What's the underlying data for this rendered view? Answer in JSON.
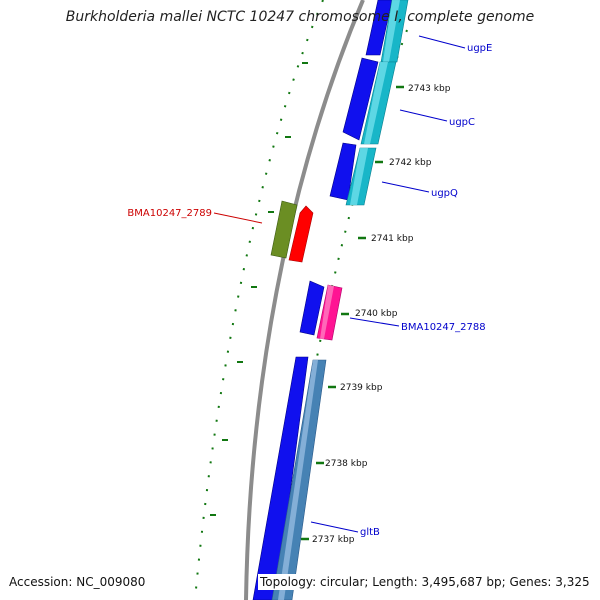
{
  "title": "Burkholderia mallei NCTC 10247 chromosome I, complete genome",
  "footer": {
    "accession": "Accession: NC_009080",
    "topology": "Topology: circular; Length: 3,495,687 bp; Genes: 3,325"
  },
  "colors": {
    "backbone": "#8c8c8c",
    "tick": "#117711",
    "forward_label": "#0000cc",
    "reverse_label": "#cc0000"
  },
  "ticks": [
    {
      "label": "2737 kbp"
    },
    {
      "label": "2738 kbp"
    },
    {
      "label": "2739 kbp"
    },
    {
      "label": "2740 kbp"
    },
    {
      "label": "2741 kbp"
    },
    {
      "label": "2742 kbp"
    },
    {
      "label": "2743 kbp"
    }
  ],
  "genes": [
    {
      "name": "ugpE",
      "color": "#1a9fb0",
      "label_color": "#0000cc"
    },
    {
      "name": "ugpC",
      "color": "#1a9fb0",
      "label_color": "#0000cc"
    },
    {
      "name": "ugpQ",
      "color": "#1a9fb0",
      "label_color": "#0000cc"
    },
    {
      "name": "BMA10247_2789",
      "color": "#ff0000",
      "label_color": "#cc0000"
    },
    {
      "name": "BMA10247_2788",
      "color": "#ff1493",
      "label_color": "#0000cc"
    },
    {
      "name": "gltB",
      "color": "#4682b4",
      "label_color": "#0000cc"
    }
  ]
}
